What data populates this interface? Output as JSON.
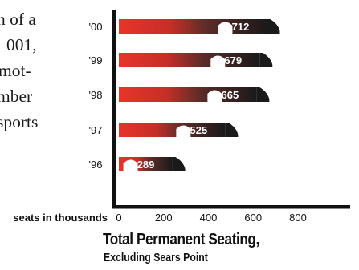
{
  "body_text": {
    "lines": [
      "n of a",
      "001,",
      "mot-",
      "mber",
      "sports"
    ]
  },
  "chart_data": {
    "type": "bar",
    "orientation": "horizontal",
    "title": "Total Permanent Seating,",
    "subtitle": "Excluding Sears Point",
    "xlabel": "seats in thousands",
    "ylabel": "",
    "categories": [
      "'00",
      "'99",
      "'98",
      "'97",
      "'96"
    ],
    "values": [
      712,
      679,
      665,
      525,
      289
    ],
    "value_labels": [
      "712",
      "679",
      "665",
      "525",
      "289"
    ],
    "xticks": [
      "0",
      "200",
      "400",
      "600",
      "800"
    ],
    "xtick_values": [
      0,
      200,
      400,
      600,
      800
    ],
    "xlim": [
      0,
      900
    ],
    "grid": false,
    "colors": {
      "gradient_start": "#e8342a",
      "gradient_end": "#1a1a1a",
      "axis": "#111111",
      "label_text": "#ffffff"
    }
  }
}
